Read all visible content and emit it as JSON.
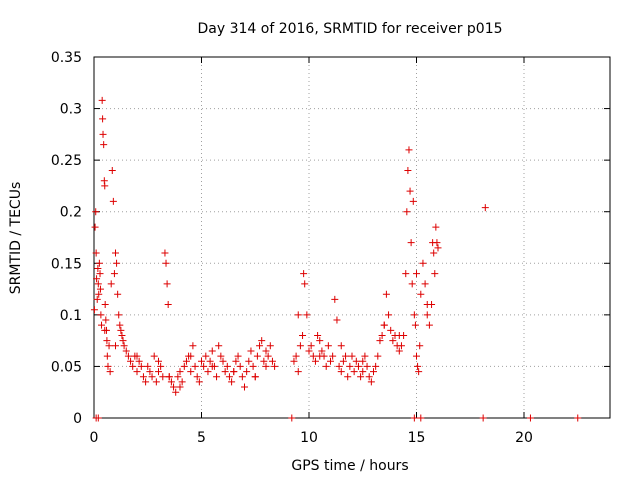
{
  "chart_data": {
    "type": "scatter",
    "title": "Day 314 of 2016, SRMTID for receiver p015",
    "xlabel": "GPS time / hours",
    "ylabel": "SRMTID / TECUs",
    "xlim": [
      0,
      24
    ],
    "ylim": [
      0,
      0.35
    ],
    "x_ticks": [
      0,
      5,
      10,
      15,
      20
    ],
    "x_tick_labels": [
      "0",
      "5",
      "10",
      "15",
      "20"
    ],
    "y_ticks": [
      0,
      0.05,
      0.1,
      0.15,
      0.2,
      0.25,
      0.3,
      0.35
    ],
    "y_tick_labels": [
      "0",
      "0.05",
      "0.1",
      "0.15",
      "0.2",
      "0.25",
      "0.3",
      "0.35"
    ],
    "grid": true,
    "marker": "+",
    "series": [
      {
        "name": "SRMTID",
        "color": "#dd0000",
        "x": [
          0.02,
          0.05,
          0.08,
          0.1,
          0.12,
          0.15,
          0.18,
          0.2,
          0.22,
          0.25,
          0.28,
          0.3,
          0.32,
          0.35,
          0.38,
          0.4,
          0.42,
          0.45,
          0.48,
          0.5,
          0.52,
          0.55,
          0.58,
          0.6,
          0.62,
          0.65,
          0.7,
          0.75,
          0.8,
          0.85,
          0.9,
          0.95,
          1.0,
          1.05,
          1.1,
          1.15,
          1.2,
          1.25,
          1.3,
          1.35,
          1.4,
          1.5,
          1.6,
          1.7,
          1.8,
          1.9,
          2.0,
          2.1,
          2.2,
          2.3,
          2.4,
          2.5,
          2.6,
          2.7,
          2.8,
          2.9,
          3.0,
          3.1,
          3.2,
          3.3,
          3.35,
          3.4,
          3.45,
          3.5,
          3.6,
          3.7,
          3.8,
          3.9,
          4.0,
          4.1,
          4.2,
          4.3,
          4.4,
          4.5,
          4.6,
          4.7,
          4.8,
          4.9,
          5.0,
          5.1,
          5.2,
          5.3,
          5.4,
          5.5,
          5.6,
          5.7,
          5.8,
          5.9,
          6.0,
          6.1,
          6.2,
          6.3,
          6.4,
          6.5,
          6.6,
          6.7,
          6.8,
          6.9,
          7.0,
          7.1,
          7.2,
          7.3,
          7.4,
          7.5,
          7.6,
          7.7,
          7.8,
          7.9,
          8.0,
          8.1,
          8.2,
          8.3,
          8.4,
          9.3,
          9.4,
          9.5,
          9.6,
          9.7,
          9.75,
          9.8,
          9.9,
          10.0,
          10.1,
          10.2,
          10.3,
          10.4,
          10.5,
          10.6,
          10.7,
          10.8,
          10.9,
          11.0,
          11.1,
          11.2,
          11.3,
          11.4,
          11.5,
          11.6,
          11.7,
          11.8,
          11.9,
          12.0,
          12.1,
          12.2,
          12.3,
          12.4,
          12.5,
          12.6,
          12.7,
          12.8,
          12.9,
          13.0,
          13.1,
          13.2,
          13.3,
          13.4,
          13.5,
          13.6,
          13.7,
          13.8,
          13.9,
          14.0,
          14.1,
          14.2,
          14.3,
          14.4,
          14.5,
          14.55,
          14.6,
          14.65,
          14.7,
          14.75,
          14.8,
          14.85,
          14.9,
          14.95,
          15.0,
          15.05,
          15.1,
          15.15,
          15.2,
          15.3,
          15.4,
          15.5,
          15.6,
          15.7,
          15.75,
          15.8,
          15.85,
          15.9,
          15.95,
          16.0,
          18.2,
          0.1,
          0.2,
          9.2,
          14.9,
          15.2,
          18.1,
          20.3,
          22.5,
          0.5,
          1.0,
          2.0,
          3.0,
          3.5,
          4.0,
          4.5,
          5.5,
          6.5,
          7.5,
          8.0,
          9.5,
          10.5,
          11.5,
          12.5,
          13.5,
          14.2,
          15.0,
          15.5
        ],
        "y": [
          0.105,
          0.185,
          0.2,
          0.16,
          0.135,
          0.115,
          0.145,
          0.13,
          0.12,
          0.15,
          0.14,
          0.125,
          0.1,
          0.09,
          0.308,
          0.29,
          0.275,
          0.265,
          0.23,
          0.225,
          0.11,
          0.095,
          0.085,
          0.075,
          0.06,
          0.05,
          0.07,
          0.045,
          0.13,
          0.24,
          0.21,
          0.14,
          0.16,
          0.15,
          0.12,
          0.1,
          0.09,
          0.085,
          0.08,
          0.075,
          0.07,
          0.065,
          0.06,
          0.055,
          0.05,
          0.06,
          0.045,
          0.055,
          0.05,
          0.04,
          0.035,
          0.05,
          0.045,
          0.04,
          0.06,
          0.035,
          0.045,
          0.05,
          0.04,
          0.16,
          0.15,
          0.13,
          0.11,
          0.04,
          0.035,
          0.03,
          0.025,
          0.04,
          0.045,
          0.035,
          0.05,
          0.055,
          0.06,
          0.045,
          0.07,
          0.05,
          0.04,
          0.035,
          0.055,
          0.05,
          0.06,
          0.045,
          0.055,
          0.065,
          0.05,
          0.04,
          0.07,
          0.06,
          0.055,
          0.045,
          0.05,
          0.04,
          0.035,
          0.045,
          0.055,
          0.06,
          0.05,
          0.04,
          0.03,
          0.045,
          0.055,
          0.065,
          0.05,
          0.04,
          0.06,
          0.07,
          0.075,
          0.055,
          0.065,
          0.06,
          0.07,
          0.055,
          0.05,
          0.055,
          0.06,
          0.045,
          0.07,
          0.08,
          0.14,
          0.13,
          0.1,
          0.065,
          0.07,
          0.06,
          0.055,
          0.08,
          0.075,
          0.065,
          0.06,
          0.05,
          0.07,
          0.055,
          0.06,
          0.115,
          0.095,
          0.05,
          0.045,
          0.055,
          0.06,
          0.04,
          0.05,
          0.06,
          0.045,
          0.055,
          0.05,
          0.04,
          0.045,
          0.06,
          0.05,
          0.04,
          0.035,
          0.045,
          0.05,
          0.06,
          0.075,
          0.08,
          0.09,
          0.12,
          0.1,
          0.085,
          0.075,
          0.08,
          0.07,
          0.065,
          0.07,
          0.08,
          0.14,
          0.2,
          0.24,
          0.26,
          0.22,
          0.17,
          0.13,
          0.21,
          0.1,
          0.09,
          0.06,
          0.05,
          0.045,
          0.07,
          0.12,
          0.15,
          0.13,
          0.1,
          0.09,
          0.11,
          0.17,
          0.16,
          0.14,
          0.185,
          0.17,
          0.165,
          0.204,
          0.0,
          0.0,
          0.0,
          0.0,
          0.0,
          0.0,
          0.0,
          0.0,
          0.085,
          0.07,
          0.06,
          0.055,
          0.04,
          0.03,
          0.06,
          0.05,
          0.045,
          0.04,
          0.05,
          0.1,
          0.06,
          0.07,
          0.055,
          0.09,
          0.08,
          0.14,
          0.11
        ]
      }
    ]
  }
}
